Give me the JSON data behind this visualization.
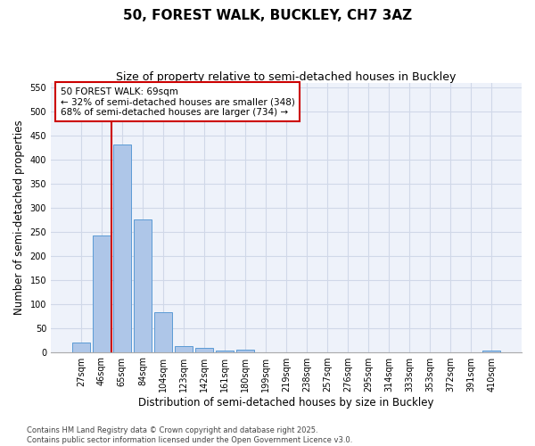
{
  "title_line1": "50, FOREST WALK, BUCKLEY, CH7 3AZ",
  "title_line2": "Size of property relative to semi-detached houses in Buckley",
  "xlabel": "Distribution of semi-detached houses by size in Buckley",
  "ylabel": "Number of semi-detached properties",
  "categories": [
    "27sqm",
    "46sqm",
    "65sqm",
    "84sqm",
    "104sqm",
    "123sqm",
    "142sqm",
    "161sqm",
    "180sqm",
    "199sqm",
    "219sqm",
    "238sqm",
    "257sqm",
    "276sqm",
    "295sqm",
    "314sqm",
    "333sqm",
    "353sqm",
    "372sqm",
    "391sqm",
    "410sqm"
  ],
  "values": [
    20,
    243,
    432,
    275,
    83,
    12,
    8,
    3,
    4,
    0,
    0,
    0,
    0,
    0,
    0,
    0,
    0,
    0,
    0,
    0,
    3
  ],
  "bar_color": "#aec6e8",
  "bar_edge_color": "#5b9bd5",
  "grid_color": "#d0d8e8",
  "bg_color": "#eef2fa",
  "annotation_text": "50 FOREST WALK: 69sqm\n← 32% of semi-detached houses are smaller (348)\n68% of semi-detached houses are larger (734) →",
  "annotation_box_color": "#ffffff",
  "annotation_box_edge": "#cc0000",
  "vline_x": 2.0,
  "vline_color": "#cc0000",
  "ylim": [
    0,
    560
  ],
  "yticks": [
    0,
    50,
    100,
    150,
    200,
    250,
    300,
    350,
    400,
    450,
    500,
    550
  ],
  "footer_text": "Contains HM Land Registry data © Crown copyright and database right 2025.\nContains public sector information licensed under the Open Government Licence v3.0.",
  "title_fontsize": 11,
  "subtitle_fontsize": 9,
  "axis_label_fontsize": 8.5,
  "tick_fontsize": 7,
  "annotation_fontsize": 7.5,
  "footer_fontsize": 6
}
